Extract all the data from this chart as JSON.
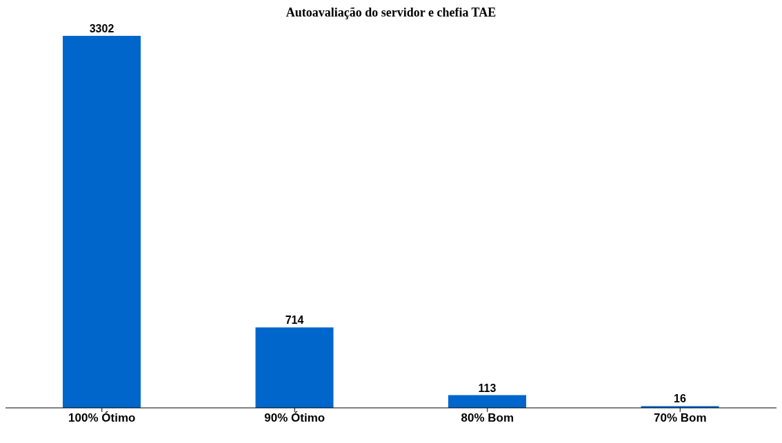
{
  "chart_data": {
    "type": "bar",
    "title": "Autoavaliação do servidor e chefia TAE",
    "categories": [
      "100% Ótimo",
      "90% Ótimo",
      "80% Bom",
      "70% Bom"
    ],
    "values": [
      3302,
      714,
      113,
      16
    ],
    "color": "#0066cc",
    "data_labels": true,
    "grid": false
  }
}
